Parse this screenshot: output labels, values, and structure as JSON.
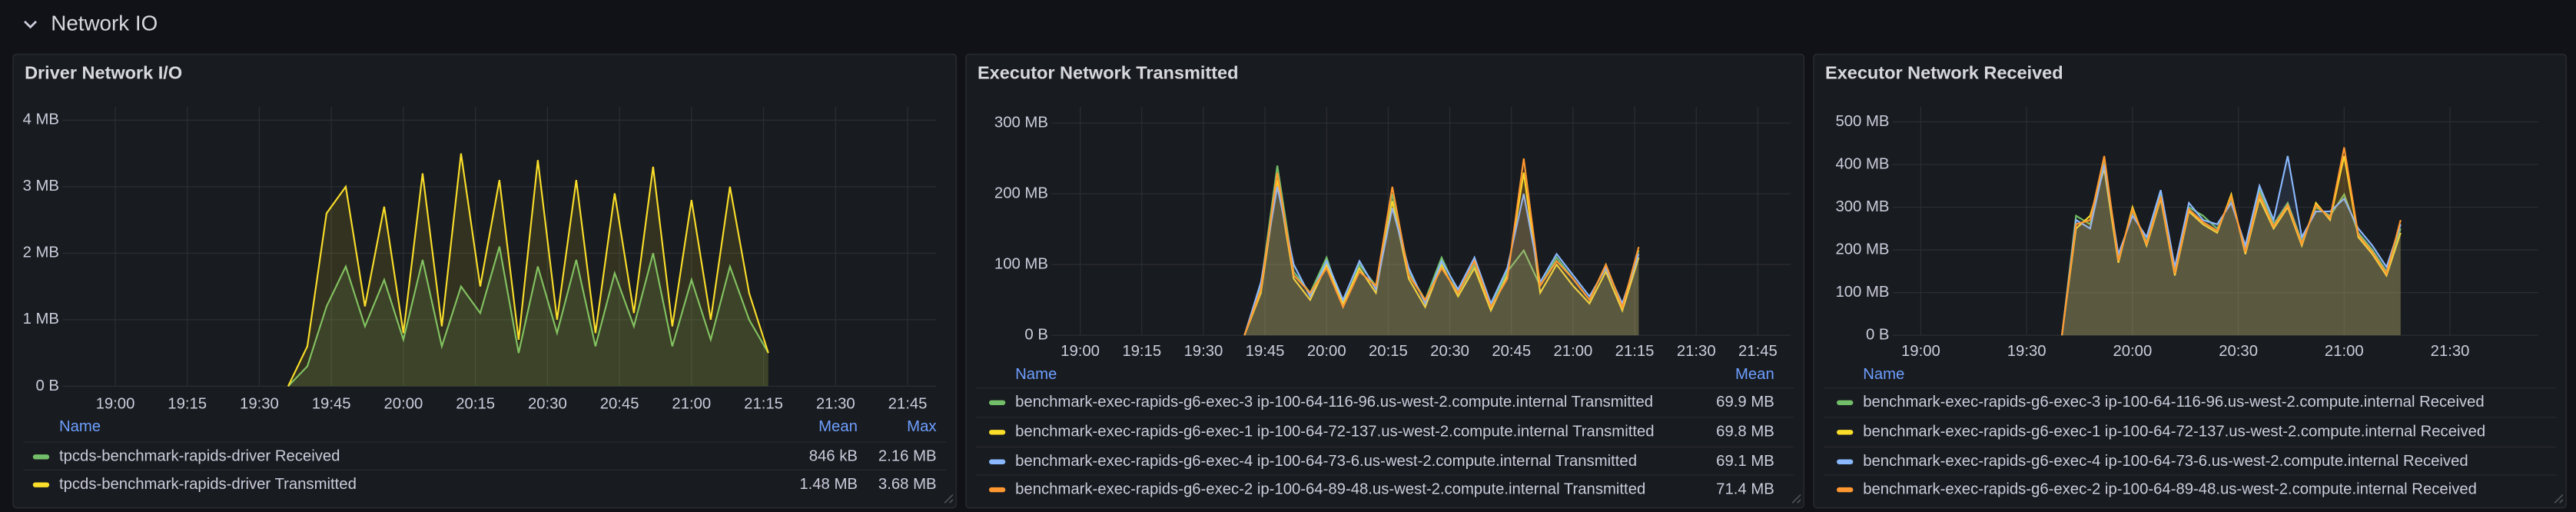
{
  "header": {
    "title": "Network IO"
  },
  "chart_data": [
    {
      "type": "line",
      "title": "Driver Network I/O",
      "grid": true,
      "x": [
        "19:36",
        "19:40",
        "19:44",
        "19:48",
        "19:52",
        "19:56",
        "20:00",
        "20:04",
        "20:08",
        "20:12",
        "20:16",
        "20:20",
        "20:24",
        "20:28",
        "20:32",
        "20:36",
        "20:40",
        "20:44",
        "20:48",
        "20:52",
        "20:56",
        "21:00",
        "21:04",
        "21:08",
        "21:12",
        "21:16"
      ],
      "xlim": [
        "18:49",
        "21:51"
      ],
      "xticks": [
        "19:00",
        "19:15",
        "19:30",
        "19:45",
        "20:00",
        "20:15",
        "20:30",
        "20:45",
        "21:00",
        "21:15",
        "21:30",
        "21:45"
      ],
      "ylim": [
        0,
        4.2
      ],
      "yticks": [
        {
          "value": 0,
          "label": "0 B"
        },
        {
          "value": 1,
          "label": "1 MB"
        },
        {
          "value": 2,
          "label": "2 MB"
        },
        {
          "value": 3,
          "label": "3 MB"
        },
        {
          "value": 4,
          "label": "4 MB"
        }
      ],
      "legend_columns": [
        "Name",
        "Mean",
        "Max"
      ],
      "series": [
        {
          "name": "tpcds-benchmark-rapids-driver Received",
          "color": "#73bf69",
          "values": [
            0,
            0.3,
            1.2,
            1.8,
            0.9,
            1.6,
            0.7,
            1.9,
            0.6,
            1.5,
            1.1,
            2.1,
            0.5,
            1.8,
            0.8,
            1.9,
            0.6,
            1.7,
            0.9,
            2.0,
            0.6,
            1.6,
            0.7,
            1.8,
            1.0,
            0.5
          ],
          "stats": [
            {
              "value": 0.846,
              "label": "846 kB"
            },
            {
              "value": 2.16,
              "label": "2.16 MB"
            }
          ]
        },
        {
          "name": "tpcds-benchmark-rapids-driver Transmitted",
          "color": "#fade2a",
          "values": [
            0,
            0.6,
            2.6,
            3.0,
            1.2,
            2.7,
            0.8,
            3.2,
            0.9,
            3.5,
            1.5,
            3.1,
            0.7,
            3.4,
            1.0,
            3.1,
            0.8,
            2.9,
            1.1,
            3.3,
            0.9,
            2.8,
            1.0,
            3.0,
            1.4,
            0.5
          ],
          "stats": [
            {
              "value": 1.48,
              "label": "1.48 MB"
            },
            {
              "value": 3.68,
              "label": "3.68 MB"
            }
          ]
        }
      ]
    },
    {
      "type": "line",
      "title": "Executor Network Transmitted",
      "grid": true,
      "x": [
        "19:40",
        "19:44",
        "19:48",
        "19:52",
        "19:56",
        "20:00",
        "20:04",
        "20:08",
        "20:12",
        "20:16",
        "20:20",
        "20:24",
        "20:28",
        "20:32",
        "20:36",
        "20:40",
        "20:44",
        "20:48",
        "20:52",
        "20:56",
        "21:00",
        "21:04",
        "21:08",
        "21:12",
        "21:16"
      ],
      "xlim": [
        "18:53",
        "21:53"
      ],
      "xticks": [
        "19:00",
        "19:15",
        "19:30",
        "19:45",
        "20:00",
        "20:15",
        "20:30",
        "20:45",
        "21:00",
        "21:15",
        "21:30",
        "21:45"
      ],
      "ylim": [
        0,
        323
      ],
      "yticks": [
        {
          "value": 0,
          "label": "0 B"
        },
        {
          "value": 100,
          "label": "100 MB"
        },
        {
          "value": 200,
          "label": "200 MB"
        },
        {
          "value": 300,
          "label": "300 MB"
        }
      ],
      "legend_columns": [
        "Name",
        "Mean"
      ],
      "series": [
        {
          "name": "benchmark-exec-rapids-g6-exec-3 ip-100-64-116-96.us-west-2.compute.internal Transmitted",
          "color": "#73bf69",
          "values": [
            0,
            70,
            240,
            90,
            60,
            110,
            40,
            100,
            70,
            200,
            90,
            50,
            110,
            60,
            100,
            40,
            90,
            120,
            70,
            110,
            80,
            50,
            100,
            40,
            120
          ],
          "stats": [
            {
              "value": 69.9,
              "label": "69.9 MB"
            }
          ]
        },
        {
          "name": "benchmark-exec-rapids-g6-exec-1 ip-100-64-72-137.us-west-2.compute.internal Transmitted",
          "color": "#fade2a",
          "values": [
            0,
            60,
            220,
            80,
            50,
            100,
            45,
            95,
            60,
            190,
            80,
            40,
            100,
            55,
            95,
            35,
            85,
            230,
            60,
            100,
            70,
            45,
            90,
            35,
            110
          ],
          "stats": [
            {
              "value": 69.8,
              "label": "69.8 MB"
            }
          ]
        },
        {
          "name": "benchmark-exec-rapids-g6-exec-4 ip-100-64-73-6.us-west-2.compute.internal Transmitted",
          "color": "#8ab8ff",
          "values": [
            0,
            75,
            210,
            100,
            55,
            105,
            50,
            105,
            65,
            180,
            95,
            45,
            105,
            65,
            110,
            45,
            95,
            200,
            75,
            115,
            85,
            55,
            95,
            45,
            115
          ],
          "stats": [
            {
              "value": 69.1,
              "label": "69.1 MB"
            }
          ]
        },
        {
          "name": "benchmark-exec-rapids-g6-exec-2 ip-100-64-89-48.us-west-2.compute.internal Transmitted",
          "color": "#ff9830",
          "values": [
            0,
            65,
            230,
            85,
            60,
            95,
            40,
            90,
            70,
            210,
            85,
            50,
            95,
            60,
            105,
            40,
            80,
            250,
            70,
            105,
            80,
            50,
            100,
            40,
            125
          ],
          "stats": [
            {
              "value": 71.4,
              "label": "71.4 MB"
            }
          ]
        }
      ]
    },
    {
      "type": "line",
      "title": "Executor Network Received",
      "grid": true,
      "x": [
        "19:40",
        "19:44",
        "19:48",
        "19:52",
        "19:56",
        "20:00",
        "20:04",
        "20:08",
        "20:12",
        "20:16",
        "20:20",
        "20:24",
        "20:28",
        "20:32",
        "20:36",
        "20:40",
        "20:44",
        "20:48",
        "20:52",
        "20:56",
        "21:00",
        "21:04",
        "21:08",
        "21:12",
        "21:16"
      ],
      "xlim": [
        "18:52",
        "21:55"
      ],
      "xticks": [
        "19:00",
        "19:30",
        "20:00",
        "20:30",
        "21:00",
        "21:30"
      ],
      "ylim": [
        0,
        535
      ],
      "yticks": [
        {
          "value": 0,
          "label": "0 B"
        },
        {
          "value": 100,
          "label": "100 MB"
        },
        {
          "value": 200,
          "label": "200 MB"
        },
        {
          "value": 300,
          "label": "300 MB"
        },
        {
          "value": 400,
          "label": "400 MB"
        },
        {
          "value": 500,
          "label": "500 MB"
        }
      ],
      "legend_columns": [
        "Name"
      ],
      "series": [
        {
          "name": "benchmark-exec-rapids-g6-exec-3 ip-100-64-116-96.us-west-2.compute.internal Received",
          "color": "#73bf69",
          "values": [
            0,
            280,
            260,
            410,
            180,
            290,
            220,
            330,
            150,
            300,
            280,
            250,
            320,
            200,
            340,
            260,
            310,
            220,
            300,
            280,
            330,
            240,
            200,
            150,
            250
          ]
        },
        {
          "name": "benchmark-exec-rapids-g6-exec-1 ip-100-64-72-137.us-west-2.compute.internal Received",
          "color": "#fade2a",
          "values": [
            0,
            250,
            280,
            390,
            170,
            300,
            210,
            320,
            140,
            290,
            260,
            240,
            330,
            190,
            320,
            250,
            300,
            210,
            310,
            270,
            420,
            230,
            190,
            140,
            240
          ]
        },
        {
          "name": "benchmark-exec-rapids-g6-exec-4 ip-100-64-73-6.us-west-2.compute.internal Received",
          "color": "#8ab8ff",
          "values": [
            0,
            270,
            250,
            400,
            190,
            280,
            230,
            340,
            160,
            310,
            270,
            260,
            310,
            210,
            350,
            270,
            420,
            230,
            290,
            290,
            320,
            250,
            210,
            160,
            260
          ]
        },
        {
          "name": "benchmark-exec-rapids-g6-exec-2 ip-100-64-89-48.us-west-2.compute.internal Received",
          "color": "#ff9830",
          "values": [
            0,
            260,
            270,
            420,
            175,
            295,
            215,
            325,
            145,
            295,
            265,
            245,
            325,
            195,
            330,
            255,
            305,
            215,
            305,
            275,
            440,
            235,
            195,
            145,
            270
          ]
        }
      ]
    }
  ]
}
